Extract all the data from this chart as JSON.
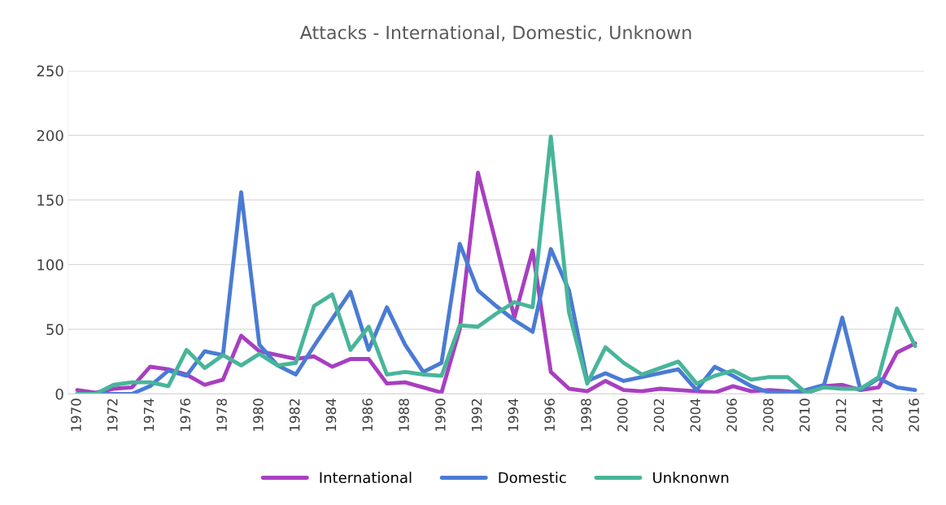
{
  "chart_data": {
    "type": "line",
    "title": "Attacks - International, Domestic, Unknown",
    "categories": [
      "1970",
      null,
      "1972",
      null,
      "1974",
      null,
      "1976",
      null,
      "1978",
      null,
      "1980",
      null,
      "1982",
      null,
      "1984",
      null,
      "1986",
      null,
      "1988",
      null,
      "1990",
      null,
      "1992",
      null,
      "1994",
      null,
      "1996",
      null,
      "1998",
      null,
      "2000",
      null,
      "2002",
      null,
      "2004",
      null,
      "2006",
      null,
      "2008",
      null,
      "2010",
      null,
      "2012",
      null,
      "2014",
      null,
      "2016"
    ],
    "series": [
      {
        "name": "International",
        "color": "#a83fc0",
        "values": [
          3,
          1,
          4,
          5,
          21,
          19,
          15,
          7,
          11,
          45,
          33,
          30,
          27,
          29,
          21,
          27,
          27,
          8,
          9,
          5,
          1,
          50,
          171,
          116,
          59,
          111,
          17,
          4,
          2,
          10,
          3,
          2,
          4,
          3,
          2,
          1,
          6,
          2,
          3,
          2,
          0,
          6,
          7,
          3,
          5,
          32,
          39
        ]
      },
      {
        "name": "Domestic",
        "color": "#4a7bd4",
        "values": [
          0,
          0,
          0,
          0,
          6,
          18,
          14,
          33,
          30,
          156,
          38,
          22,
          15,
          37,
          58,
          79,
          34,
          67,
          38,
          17,
          24,
          116,
          80,
          68,
          57,
          48,
          112,
          80,
          10,
          16,
          10,
          13,
          16,
          19,
          3,
          21,
          14,
          6,
          1,
          1,
          3,
          7,
          59,
          3,
          12,
          5,
          3
        ]
      },
      {
        "name": "Unknonwn",
        "color": "#48b59a",
        "values": [
          0,
          0,
          7,
          9,
          9,
          6,
          34,
          20,
          30,
          22,
          31,
          22,
          24,
          68,
          77,
          34,
          52,
          15,
          17,
          15,
          14,
          53,
          52,
          62,
          71,
          67,
          199,
          63,
          8,
          36,
          24,
          15,
          20,
          25,
          8,
          14,
          18,
          11,
          13,
          13,
          1,
          5,
          4,
          4,
          13,
          66,
          37
        ]
      }
    ],
    "ylim": [
      0,
      250
    ],
    "yticks": [
      0,
      50,
      100,
      150,
      200,
      250
    ],
    "grid": "y",
    "legend": "bottom",
    "marker": "none",
    "line_style": "solid"
  }
}
